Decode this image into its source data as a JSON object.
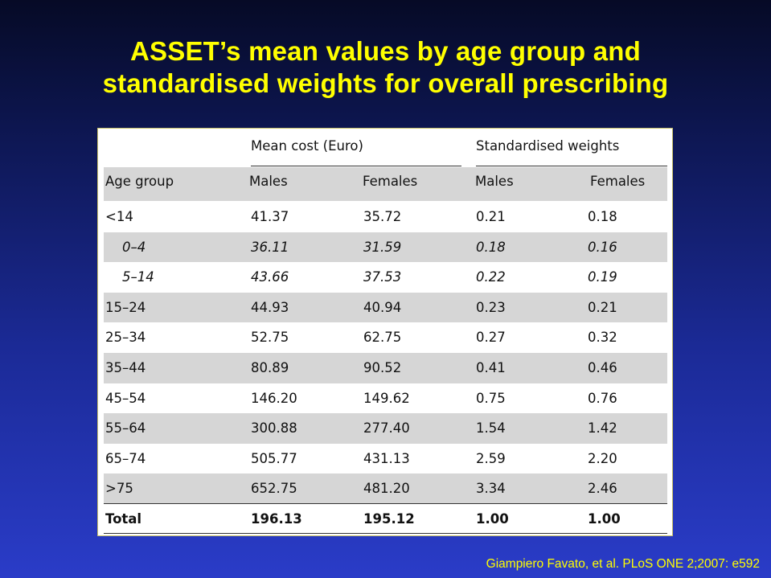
{
  "title": {
    "line1": "ASSET’s mean values by age group and",
    "line2": "standardised weights for overall prescribing"
  },
  "table": {
    "group_headers": {
      "mean_cost": "Mean cost (Euro)",
      "standardised_weights": "Standardised weights"
    },
    "column_headers": {
      "age_group": "Age group",
      "cost_males": "Males",
      "cost_females": "Females",
      "weight_males": "Males",
      "weight_females": "Females"
    },
    "rows": [
      {
        "age": "<14",
        "cost_m": "41.37",
        "cost_f": "35.72",
        "w_m": "0.21",
        "w_f": "0.18"
      },
      {
        "age": "0–4",
        "cost_m": "36.11",
        "cost_f": "31.59",
        "w_m": "0.18",
        "w_f": "0.16"
      },
      {
        "age": "5–14",
        "cost_m": "43.66",
        "cost_f": "37.53",
        "w_m": "0.22",
        "w_f": "0.19"
      },
      {
        "age": "15–24",
        "cost_m": "44.93",
        "cost_f": "40.94",
        "w_m": "0.23",
        "w_f": "0.21"
      },
      {
        "age": "25–34",
        "cost_m": "52.75",
        "cost_f": "62.75",
        "w_m": "0.27",
        "w_f": "0.32"
      },
      {
        "age": "35–44",
        "cost_m": "80.89",
        "cost_f": "90.52",
        "w_m": "0.41",
        "w_f": "0.46"
      },
      {
        "age": "45–54",
        "cost_m": "146.20",
        "cost_f": "149.62",
        "w_m": "0.75",
        "w_f": "0.76"
      },
      {
        "age": "55–64",
        "cost_m": "300.88",
        "cost_f": "277.40",
        "w_m": "1.54",
        "w_f": "1.42"
      },
      {
        "age": "65–74",
        "cost_m": "505.77",
        "cost_f": "431.13",
        "w_m": "2.59",
        "w_f": "2.20"
      },
      {
        "age": ">75",
        "cost_m": "652.75",
        "cost_f": "481.20",
        "w_m": "3.34",
        "w_f": "2.46"
      }
    ],
    "total": {
      "age": "Total",
      "cost_m": "196.13",
      "cost_f": "195.12",
      "w_m": "1.00",
      "w_f": "1.00"
    }
  },
  "citation": "Giampiero Favato, et al. PLoS ONE 2;2007: e592",
  "colors": {
    "title": "#ffff00",
    "citation": "#ffff00",
    "background_top": "#060a26",
    "background_bottom": "#2a3cc8",
    "row_shade": "#d6d6d6"
  }
}
